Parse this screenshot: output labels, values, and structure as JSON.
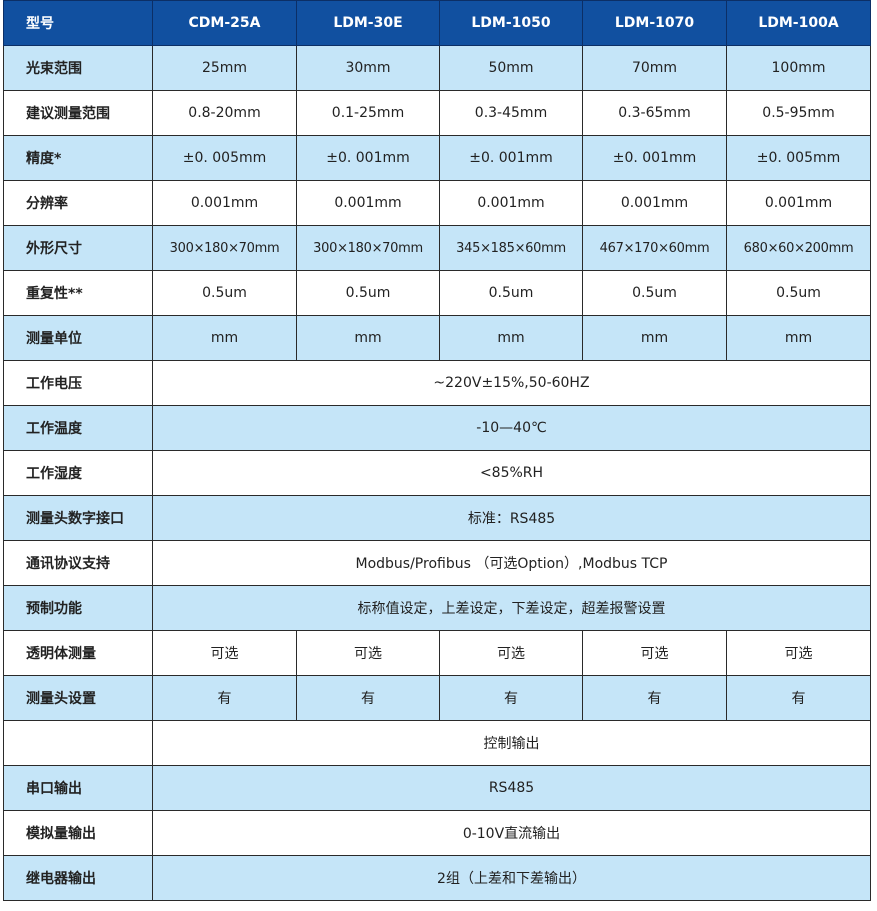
{
  "header": {
    "label": "型号",
    "models": [
      "CDM-25A",
      "LDM-30E",
      "LDM-1050",
      "LDM-1070",
      "LDM-100A"
    ]
  },
  "colors": {
    "header": "#1150a0",
    "row_alt": "#c5e5f8"
  },
  "rows": [
    {
      "label": "光束范围",
      "values": [
        "25mm",
        "30mm",
        "50mm",
        "70mm",
        "100mm"
      ]
    },
    {
      "label": "建议测量范围",
      "values": [
        "0.8-20mm",
        "0.1-25mm",
        "0.3-45mm",
        "0.3-65mm",
        "0.5-95mm"
      ]
    },
    {
      "label": "精度*",
      "values": [
        "±0. 005mm",
        "±0. 001mm",
        "±0. 001mm",
        "±0. 001mm",
        "±0. 005mm"
      ]
    },
    {
      "label": "分辨率",
      "values": [
        "0.001mm",
        "0.001mm",
        "0.001mm",
        "0.001mm",
        "0.001mm"
      ]
    },
    {
      "label": "外形尺寸",
      "values": [
        "300×180×70mm",
        "300×180×70mm",
        "345×185×60mm",
        "467×170×60mm",
        "680×60×200mm"
      ]
    },
    {
      "label": "重复性**",
      "values": [
        "0.5um",
        "0.5um",
        "0.5um",
        "0.5um",
        "0.5um"
      ]
    },
    {
      "label": "测量单位",
      "values": [
        "mm",
        "mm",
        "mm",
        "mm",
        "mm"
      ]
    },
    {
      "label": "工作电压",
      "value": "~220V±15%,50-60HZ"
    },
    {
      "label": "工作温度",
      "value": "-10—40℃"
    },
    {
      "label": "工作湿度",
      "value": "<85%RH"
    },
    {
      "label": "测量头数字接口",
      "value": "标准：RS485"
    },
    {
      "label": "通讯协议支持",
      "value": "Modbus/Profibus （可选Option）,Modbus TCP"
    },
    {
      "label": "预制功能",
      "value": "标称值设定，上差设定，下差设定，超差报警设置"
    },
    {
      "label": "透明体测量",
      "values": [
        "可选",
        "可选",
        "可选",
        "可选",
        "可选"
      ]
    },
    {
      "label": "测量头设置",
      "values": [
        "有",
        "有",
        "有",
        "有",
        "有"
      ]
    },
    {
      "label": "",
      "value": "控制输出"
    },
    {
      "label": "串口输出",
      "value": "RS485"
    },
    {
      "label": "模拟量输出",
      "value": "0-10V直流输出"
    },
    {
      "label": "继电器输出",
      "value": "2组（上差和下差输出）"
    }
  ]
}
